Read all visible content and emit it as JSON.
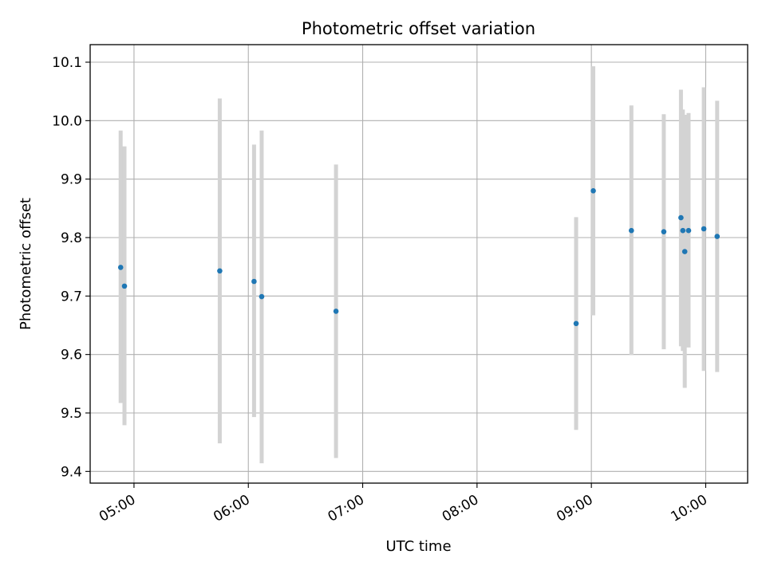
{
  "chart_data": {
    "type": "scatter",
    "title": "Photometric offset variation",
    "xlabel": "UTC time",
    "ylabel": "Photometric offset",
    "x_ticks": [
      "05:00",
      "06:00",
      "07:00",
      "08:00",
      "09:00",
      "10:00"
    ],
    "y_ticks": [
      "9.4",
      "9.5",
      "9.6",
      "9.7",
      "9.8",
      "9.9",
      "10.0",
      "10.1"
    ],
    "xlim": [
      "04:37",
      "10:22"
    ],
    "ylim": [
      9.38,
      10.13
    ],
    "grid": true,
    "point_color": "#1f77b4",
    "errorbar_color": "#d3d3d3",
    "points": [
      {
        "x": "04:53",
        "y": 9.749,
        "ylow": 9.517,
        "yhigh": 9.983
      },
      {
        "x": "04:55",
        "y": 9.717,
        "ylow": 9.479,
        "yhigh": 9.956
      },
      {
        "x": "05:45",
        "y": 9.743,
        "ylow": 9.448,
        "yhigh": 10.038
      },
      {
        "x": "06:03",
        "y": 9.725,
        "ylow": 9.493,
        "yhigh": 9.959
      },
      {
        "x": "06:07",
        "y": 9.699,
        "ylow": 9.414,
        "yhigh": 9.983
      },
      {
        "x": "06:46",
        "y": 9.674,
        "ylow": 9.423,
        "yhigh": 9.925
      },
      {
        "x": "08:52",
        "y": 9.653,
        "ylow": 9.471,
        "yhigh": 9.835
      },
      {
        "x": "09:01",
        "y": 9.88,
        "ylow": 9.667,
        "yhigh": 10.093
      },
      {
        "x": "09:21",
        "y": 9.812,
        "ylow": 9.599,
        "yhigh": 10.026
      },
      {
        "x": "09:38",
        "y": 9.81,
        "ylow": 9.609,
        "yhigh": 10.011
      },
      {
        "x": "09:47",
        "y": 9.834,
        "ylow": 9.614,
        "yhigh": 10.053
      },
      {
        "x": "09:48",
        "y": 9.812,
        "ylow": 9.606,
        "yhigh": 10.019
      },
      {
        "x": "09:49",
        "y": 9.776,
        "ylow": 9.543,
        "yhigh": 10.01
      },
      {
        "x": "09:51",
        "y": 9.812,
        "ylow": 9.612,
        "yhigh": 10.013
      },
      {
        "x": "09:59",
        "y": 9.815,
        "ylow": 9.572,
        "yhigh": 10.057
      },
      {
        "x": "10:06",
        "y": 9.802,
        "ylow": 9.57,
        "yhigh": 10.034
      }
    ]
  }
}
